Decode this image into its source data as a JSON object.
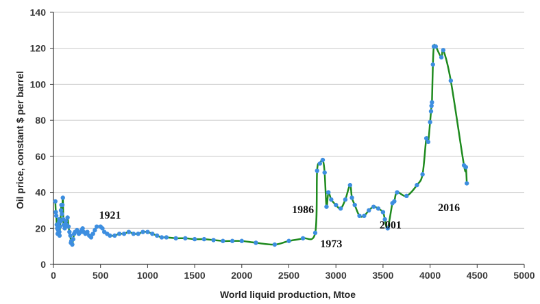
{
  "chart_data": {
    "type": "line",
    "title": "",
    "xlabel": "World liquid production, Mtoe",
    "ylabel": "Oil price, constant $ per barrel",
    "xlim": [
      0,
      5000
    ],
    "ylim": [
      0,
      140
    ],
    "x_ticks": [
      "0",
      "500",
      "1000",
      "1500",
      "2000",
      "2500",
      "3000",
      "3500",
      "4000",
      "4500",
      "5000"
    ],
    "y_ticks": [
      "0",
      "20",
      "40",
      "60",
      "80",
      "100",
      "120",
      "140"
    ],
    "grid": "horizontal",
    "colors": {
      "line": "#1e8a1e",
      "marker": "#3d8ee0",
      "grid": "#c8c8c8",
      "axis": "#333333"
    },
    "annotations": [
      {
        "text": "1921",
        "x": 600,
        "y": 25.5
      },
      {
        "text": "1986",
        "x": 2650,
        "y": 28.5
      },
      {
        "text": "1973",
        "x": 2950,
        "y": 9.5
      },
      {
        "text": "2001",
        "x": 3580,
        "y": 20
      },
      {
        "text": "2016",
        "x": 4200,
        "y": 29.5
      }
    ],
    "series": [
      {
        "points": [
          [
            20,
            35
          ],
          [
            25,
            29
          ],
          [
            30,
            27
          ],
          [
            35,
            22
          ],
          [
            40,
            20
          ],
          [
            45,
            17
          ],
          [
            50,
            19
          ],
          [
            55,
            23
          ],
          [
            60,
            25
          ],
          [
            62,
            18
          ],
          [
            65,
            16
          ],
          [
            70,
            21
          ],
          [
            75,
            24
          ],
          [
            80,
            30
          ],
          [
            85,
            33
          ],
          [
            90,
            28
          ],
          [
            95,
            33
          ],
          [
            100,
            37
          ],
          [
            105,
            25
          ],
          [
            110,
            22
          ],
          [
            120,
            20
          ],
          [
            130,
            24
          ],
          [
            140,
            22
          ],
          [
            150,
            26
          ],
          [
            160,
            21
          ],
          [
            170,
            18
          ],
          [
            180,
            16
          ],
          [
            185,
            12
          ],
          [
            190,
            13
          ],
          [
            200,
            11
          ],
          [
            210,
            14
          ],
          [
            220,
            17
          ],
          [
            230,
            18
          ],
          [
            250,
            19
          ],
          [
            270,
            17
          ],
          [
            290,
            18
          ],
          [
            300,
            19
          ],
          [
            310,
            20
          ],
          [
            320,
            18
          ],
          [
            340,
            17
          ],
          [
            360,
            18
          ],
          [
            380,
            16
          ],
          [
            400,
            15
          ],
          [
            420,
            17
          ],
          [
            440,
            19
          ],
          [
            460,
            21
          ],
          [
            500,
            21
          ],
          [
            520,
            20
          ],
          [
            540,
            18
          ],
          [
            570,
            17
          ],
          [
            600,
            16
          ],
          [
            650,
            16
          ],
          [
            700,
            17
          ],
          [
            750,
            17
          ],
          [
            800,
            18
          ],
          [
            850,
            17
          ],
          [
            900,
            17
          ],
          [
            950,
            18
          ],
          [
            1000,
            18
          ],
          [
            1050,
            17
          ],
          [
            1100,
            16
          ],
          [
            1150,
            15
          ],
          [
            1200,
            15
          ],
          [
            1300,
            14.5
          ],
          [
            1400,
            14.5
          ],
          [
            1500,
            14
          ],
          [
            1600,
            14
          ],
          [
            1700,
            13.5
          ],
          [
            1800,
            13
          ],
          [
            1900,
            13
          ],
          [
            2000,
            13
          ],
          [
            2150,
            12
          ],
          [
            2350,
            11
          ],
          [
            2500,
            13
          ],
          [
            2650,
            14.5
          ],
          [
            2780,
            17.5
          ],
          [
            2800,
            52
          ],
          [
            2830,
            56
          ],
          [
            2860,
            58
          ],
          [
            2880,
            51
          ],
          [
            2900,
            32
          ],
          [
            2920,
            40
          ],
          [
            2950,
            36
          ],
          [
            3000,
            33
          ],
          [
            3050,
            31
          ],
          [
            3100,
            36
          ],
          [
            3150,
            44
          ],
          [
            3170,
            37
          ],
          [
            3200,
            33
          ],
          [
            3250,
            27
          ],
          [
            3300,
            27
          ],
          [
            3350,
            30
          ],
          [
            3400,
            32
          ],
          [
            3450,
            31
          ],
          [
            3500,
            29
          ],
          [
            3520,
            25
          ],
          [
            3550,
            20
          ],
          [
            3600,
            34
          ],
          [
            3620,
            35
          ],
          [
            3650,
            40
          ],
          [
            3750,
            38
          ],
          [
            3860,
            44
          ],
          [
            3920,
            50
          ],
          [
            3960,
            70
          ],
          [
            3980,
            68
          ],
          [
            4000,
            79
          ],
          [
            4010,
            85
          ],
          [
            4015,
            88
          ],
          [
            4020,
            90
          ],
          [
            4030,
            111
          ],
          [
            4040,
            121
          ],
          [
            4060,
            121
          ],
          [
            4120,
            115
          ],
          [
            4140,
            119
          ],
          [
            4220,
            102
          ],
          [
            4360,
            55
          ],
          [
            4380,
            54
          ],
          [
            4390,
            45
          ]
        ]
      }
    ]
  }
}
